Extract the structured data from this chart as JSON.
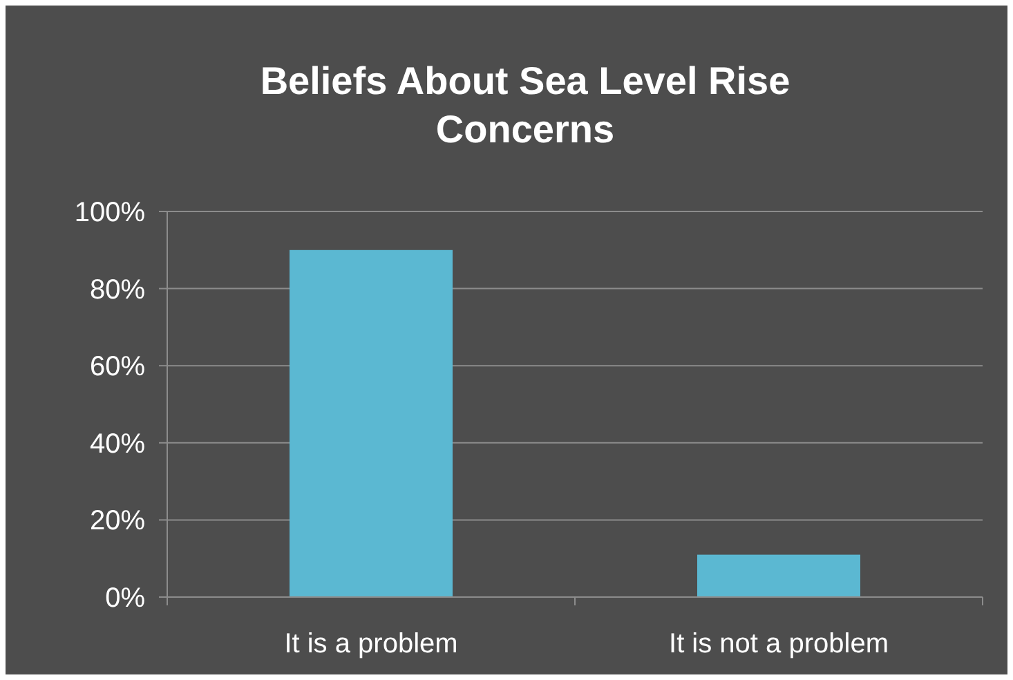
{
  "chart_data": {
    "type": "bar",
    "title": "Beliefs About Sea Level Rise Concerns",
    "categories": [
      "It is a problem",
      "It is not a problem"
    ],
    "values": [
      90,
      11
    ],
    "color": "#5bb8d2",
    "ylim": [
      0,
      100
    ],
    "yticks": [
      {
        "value": 0,
        "label": "0%"
      },
      {
        "value": 20,
        "label": "20%"
      },
      {
        "value": 40,
        "label": "40%"
      },
      {
        "value": 60,
        "label": "60%"
      },
      {
        "value": 80,
        "label": "80%"
      },
      {
        "value": 100,
        "label": "100%"
      }
    ],
    "grid": "y"
  }
}
